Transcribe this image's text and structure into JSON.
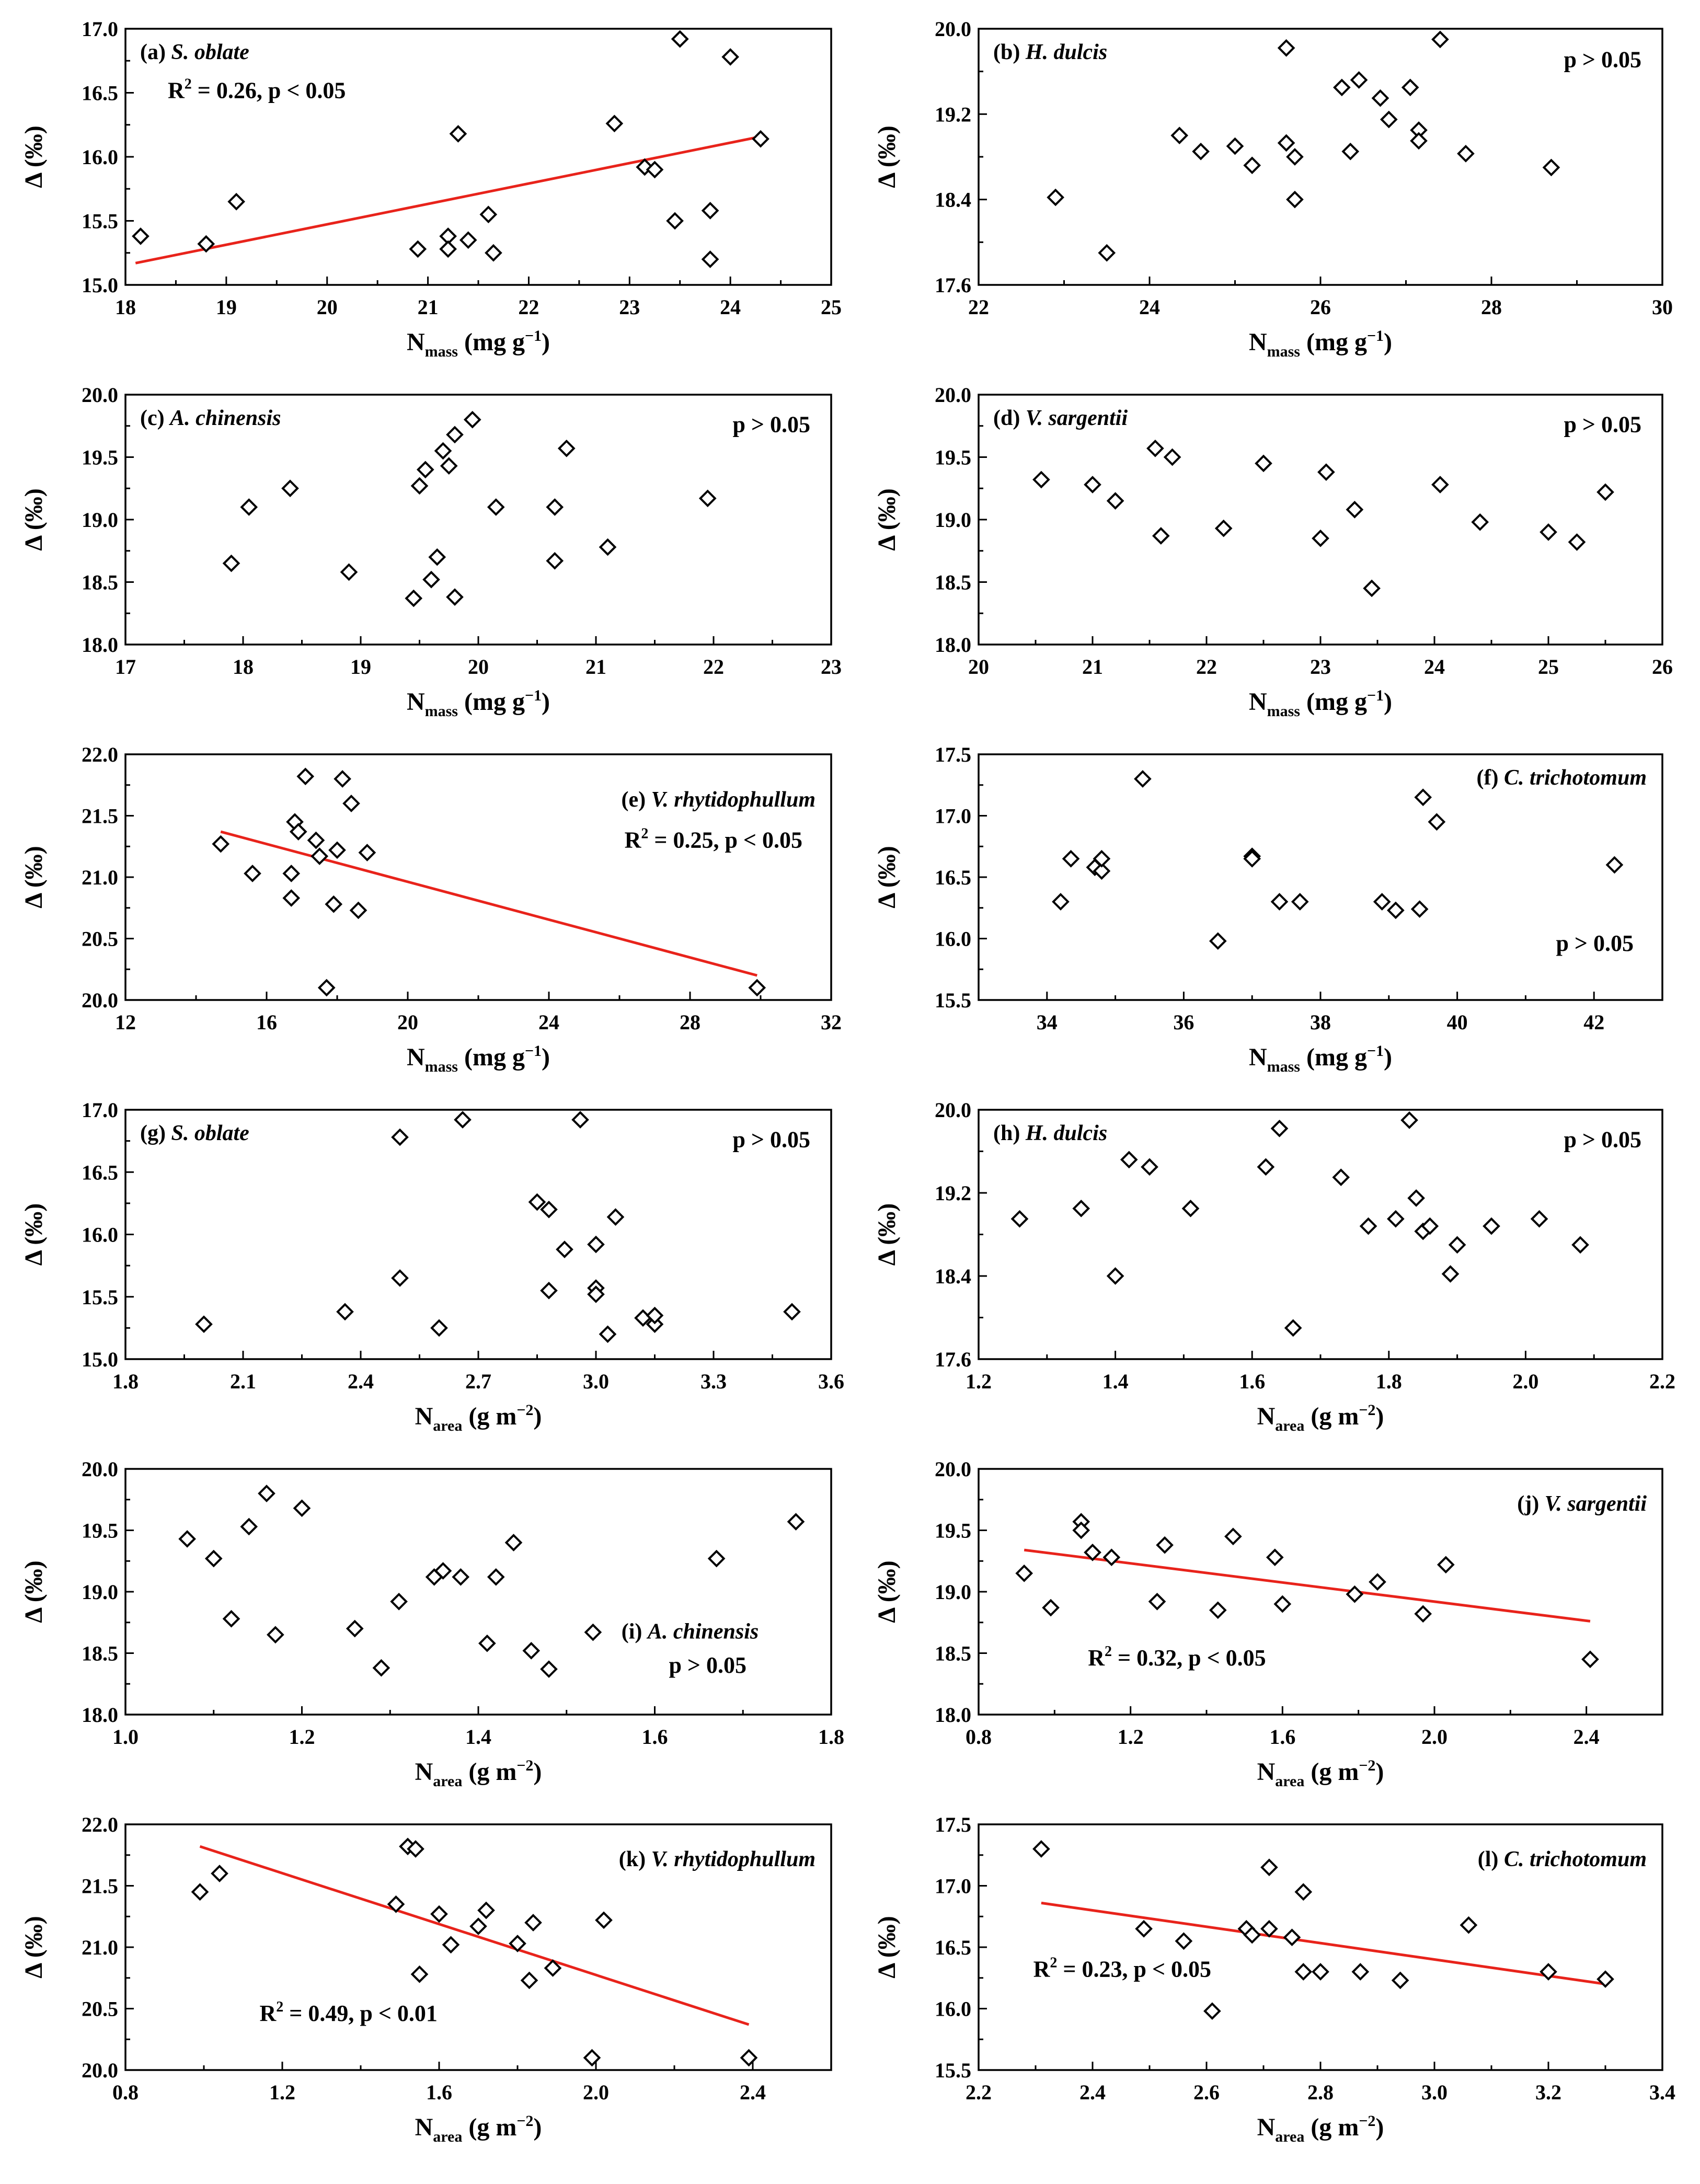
{
  "colors": {
    "fit_line": "#e8231b",
    "marker_stroke": "#000000",
    "background": "#ffffff"
  },
  "chart_data": [
    {
      "type": "scatter",
      "panel": "(a)",
      "species": "S. oblate",
      "xlabel": "N",
      "xlabel_sub": "mass",
      "xlabel_unit": " (mg g",
      "xlabel_sup": "−1",
      "xlabel_close": ")",
      "ylabel": "Δ (‰)",
      "xlim": [
        18,
        25
      ],
      "ylim": [
        15.0,
        17.0
      ],
      "xticks": [
        18,
        19,
        20,
        21,
        22,
        23,
        24,
        25
      ],
      "xtick_labels": [
        "18",
        "19",
        "20",
        "21",
        "22",
        "23",
        "24",
        "25"
      ],
      "yticks": [
        15.0,
        15.5,
        16.0,
        16.5,
        17.0
      ],
      "ytick_labels": [
        "15.0",
        "15.5",
        "16.0",
        "16.5",
        "17.0"
      ],
      "x": [
        18.15,
        18.8,
        19.1,
        20.9,
        21.2,
        21.2,
        21.3,
        21.4,
        21.6,
        21.65,
        22.85,
        23.15,
        23.25,
        23.45,
        23.5,
        23.5,
        23.8,
        23.8,
        24.0,
        24.3
      ],
      "y": [
        15.38,
        15.32,
        15.65,
        15.28,
        15.38,
        15.28,
        16.18,
        15.35,
        15.55,
        15.25,
        16.26,
        15.92,
        15.9,
        15.5,
        16.92,
        16.92,
        15.58,
        15.2,
        16.78,
        16.14
      ],
      "fit": {
        "x": [
          18.1,
          24.25
        ],
        "y": [
          15.17,
          16.15
        ]
      },
      "annotation": {
        "r2_prefix": "R",
        "r2_sup": "2",
        "text": " = 0.26, p < 0.05",
        "position": "top-left"
      }
    },
    {
      "type": "scatter",
      "panel": "(b)",
      "species": "H. dulcis",
      "xlabel": "N",
      "xlabel_sub": "mass",
      "xlabel_unit": " (mg g",
      "xlabel_sup": "−1",
      "xlabel_close": ")",
      "ylabel": "Δ (‰)",
      "xlim": [
        22,
        30
      ],
      "ylim": [
        17.6,
        20.0
      ],
      "xticks": [
        22,
        24,
        26,
        28,
        30
      ],
      "xtick_labels": [
        "22",
        "24",
        "26",
        "28",
        "30"
      ],
      "yticks": [
        17.6,
        18.4,
        19.2,
        20.0
      ],
      "ytick_labels": [
        "17.6",
        "18.4",
        "19.2",
        "20.0"
      ],
      "x": [
        22.9,
        23.5,
        24.35,
        24.6,
        25.0,
        25.2,
        25.6,
        25.6,
        25.7,
        25.7,
        26.25,
        26.35,
        26.45,
        26.7,
        26.8,
        27.05,
        27.15,
        27.15,
        27.4,
        27.7,
        28.7
      ],
      "y": [
        18.42,
        17.9,
        19.0,
        18.85,
        18.9,
        18.72,
        19.82,
        18.93,
        18.8,
        18.4,
        19.45,
        18.85,
        19.52,
        19.35,
        19.15,
        19.45,
        19.05,
        18.95,
        19.9,
        18.83,
        18.7
      ],
      "fit": null,
      "annotation": {
        "text": "p > 0.05",
        "position": "top-right"
      }
    },
    {
      "type": "scatter",
      "panel": "(c)",
      "species": "A. chinensis",
      "xlabel": "N",
      "xlabel_sub": "mass",
      "xlabel_unit": " (mg g",
      "xlabel_sup": "−1",
      "xlabel_close": ")",
      "ylabel": "Δ (‰)",
      "xlim": [
        17,
        23
      ],
      "ylim": [
        18.0,
        20.0
      ],
      "xticks": [
        17,
        18,
        19,
        20,
        21,
        22,
        23
      ],
      "xtick_labels": [
        "17",
        "18",
        "19",
        "20",
        "21",
        "22",
        "23"
      ],
      "yticks": [
        18.0,
        18.5,
        19.0,
        19.5,
        20.0
      ],
      "ytick_labels": [
        "18.0",
        "18.5",
        "19.0",
        "19.5",
        "20.0"
      ],
      "x": [
        17.9,
        18.05,
        18.4,
        18.9,
        19.45,
        19.5,
        19.55,
        19.6,
        19.65,
        19.7,
        19.75,
        19.8,
        19.8,
        19.95,
        20.15,
        20.65,
        20.65,
        20.75,
        21.1,
        21.95
      ],
      "y": [
        18.65,
        19.1,
        19.25,
        18.58,
        18.37,
        19.27,
        19.4,
        18.52,
        18.7,
        19.55,
        19.43,
        19.68,
        18.38,
        19.8,
        19.1,
        19.1,
        18.67,
        19.57,
        18.78,
        19.17
      ],
      "fit": null,
      "annotation": {
        "text": "p > 0.05",
        "position": "top-right"
      }
    },
    {
      "type": "scatter",
      "panel": "(d)",
      "species": "V. sargentii",
      "xlabel": "N",
      "xlabel_sub": "mass",
      "xlabel_unit": " (mg g",
      "xlabel_sup": "−1",
      "xlabel_close": ")",
      "ylabel": "Δ (‰)",
      "xlim": [
        20,
        26
      ],
      "ylim": [
        18.0,
        20.0
      ],
      "xticks": [
        20,
        21,
        22,
        23,
        24,
        25,
        26
      ],
      "xtick_labels": [
        "20",
        "21",
        "22",
        "23",
        "24",
        "25",
        "26"
      ],
      "yticks": [
        18.0,
        18.5,
        19.0,
        19.5,
        20.0
      ],
      "ytick_labels": [
        "18.0",
        "18.5",
        "19.0",
        "19.5",
        "20.0"
      ],
      "x": [
        20.55,
        21.0,
        21.2,
        21.55,
        21.6,
        21.7,
        22.15,
        22.5,
        23.0,
        23.05,
        23.3,
        23.45,
        24.05,
        24.4,
        25.0,
        25.25,
        25.5
      ],
      "y": [
        19.32,
        19.28,
        19.15,
        19.57,
        18.87,
        19.5,
        18.93,
        19.45,
        18.85,
        19.38,
        19.08,
        18.45,
        19.28,
        18.98,
        18.9,
        18.82,
        19.22
      ],
      "fit": null,
      "annotation": {
        "text": "p > 0.05",
        "position": "top-right"
      }
    },
    {
      "type": "scatter",
      "panel": "(e)",
      "species": "V. rhytidophullum",
      "xlabel": "N",
      "xlabel_sub": "mass",
      "xlabel_unit": " (mg g",
      "xlabel_sup": "−1",
      "xlabel_close": ")",
      "ylabel": "Δ (‰)",
      "xlim": [
        12,
        32
      ],
      "ylim": [
        20.0,
        22.0
      ],
      "xticks": [
        12,
        16,
        20,
        24,
        28,
        32
      ],
      "xtick_labels": [
        "12",
        "16",
        "20",
        "24",
        "28",
        "32"
      ],
      "yticks": [
        20.0,
        20.5,
        21.0,
        21.5,
        22.0
      ],
      "ytick_labels": [
        "20.0",
        "20.5",
        "21.0",
        "21.5",
        "22.0"
      ],
      "x": [
        14.7,
        15.6,
        16.7,
        16.7,
        16.8,
        16.9,
        17.1,
        17.4,
        17.5,
        17.7,
        17.9,
        18.0,
        18.15,
        18.4,
        18.6,
        18.85,
        29.9
      ],
      "y": [
        21.27,
        21.03,
        21.03,
        20.83,
        21.45,
        21.37,
        21.82,
        21.3,
        21.17,
        20.1,
        20.78,
        21.22,
        21.8,
        21.6,
        20.73,
        21.2,
        20.1
      ],
      "fit": {
        "x": [
          14.7,
          29.9
        ],
        "y": [
          21.37,
          20.2
        ]
      },
      "annotation": {
        "r2_prefix": "R",
        "r2_sup": "2",
        "text": " = 0.25, p < 0.05",
        "position": "top-right"
      }
    },
    {
      "type": "scatter",
      "panel": "(f)",
      "species": "C. trichotomum",
      "xlabel": "N",
      "xlabel_sub": "mass",
      "xlabel_unit": " (mg g",
      "xlabel_sup": "−1",
      "xlabel_close": ")",
      "ylabel": "Δ (‰)",
      "xlim": [
        33,
        43
      ],
      "ylim": [
        15.5,
        17.5
      ],
      "xticks": [
        34,
        36,
        38,
        40,
        42
      ],
      "xtick_labels": [
        "34",
        "36",
        "38",
        "40",
        "42"
      ],
      "yticks": [
        15.5,
        16.0,
        16.5,
        17.0,
        17.5
      ],
      "ytick_labels": [
        "15.5",
        "16.0",
        "16.5",
        "17.0",
        "17.5"
      ],
      "x": [
        34.2,
        34.35,
        34.7,
        34.8,
        34.8,
        35.4,
        36.5,
        37.0,
        37.0,
        37.4,
        37.7,
        38.9,
        39.1,
        39.45,
        39.5,
        39.7,
        42.3
      ],
      "y": [
        16.3,
        16.65,
        16.58,
        16.55,
        16.65,
        17.3,
        15.98,
        16.67,
        16.65,
        16.3,
        16.3,
        16.3,
        16.23,
        16.24,
        17.15,
        16.95,
        16.6
      ],
      "fit": null,
      "annotation": {
        "text": "p > 0.05",
        "position": "bottom-right"
      }
    },
    {
      "type": "scatter",
      "panel": "(g)",
      "species": "S. oblate",
      "xlabel": "N",
      "xlabel_sub": "area",
      "xlabel_unit": " (g m",
      "xlabel_sup": "−2",
      "xlabel_close": ")",
      "ylabel": "Δ (‰)",
      "xlim": [
        1.8,
        3.6
      ],
      "ylim": [
        15.0,
        17.0
      ],
      "xticks": [
        1.8,
        2.1,
        2.4,
        2.7,
        3.0,
        3.3,
        3.6
      ],
      "xtick_labels": [
        "1.8",
        "2.1",
        "2.4",
        "2.7",
        "3.0",
        "3.3",
        "3.6"
      ],
      "yticks": [
        15.0,
        15.5,
        16.0,
        16.5,
        17.0
      ],
      "ytick_labels": [
        "15.0",
        "15.5",
        "16.0",
        "16.5",
        "17.0"
      ],
      "x": [
        2.0,
        2.36,
        2.5,
        2.5,
        2.6,
        2.66,
        2.85,
        2.88,
        2.88,
        2.92,
        2.96,
        3.0,
        3.0,
        3.0,
        3.03,
        3.05,
        3.12,
        3.15,
        3.15,
        3.5
      ],
      "y": [
        15.28,
        15.38,
        16.78,
        15.65,
        15.25,
        16.92,
        16.26,
        16.2,
        15.55,
        15.88,
        16.92,
        15.92,
        15.57,
        15.52,
        15.2,
        16.14,
        15.33,
        15.28,
        15.35,
        15.38
      ],
      "fit": null,
      "annotation": {
        "text": "p > 0.05",
        "position": "top-right"
      }
    },
    {
      "type": "scatter",
      "panel": "(h)",
      "species": "H. dulcis",
      "xlabel": "N",
      "xlabel_sub": "area",
      "xlabel_unit": " (g m",
      "xlabel_sup": "−2",
      "xlabel_close": ")",
      "ylabel": "Δ (‰)",
      "xlim": [
        1.2,
        2.2
      ],
      "ylim": [
        17.6,
        20.0
      ],
      "xticks": [
        1.2,
        1.4,
        1.6,
        1.8,
        2.0,
        2.2
      ],
      "xtick_labels": [
        "1.2",
        "1.4",
        "1.6",
        "1.8",
        "2.0",
        "2.2"
      ],
      "yticks": [
        17.6,
        18.4,
        19.2,
        20.0
      ],
      "ytick_labels": [
        "17.6",
        "18.4",
        "19.2",
        "20.0"
      ],
      "x": [
        1.26,
        1.35,
        1.4,
        1.42,
        1.45,
        1.51,
        1.62,
        1.64,
        1.66,
        1.73,
        1.77,
        1.81,
        1.83,
        1.84,
        1.85,
        1.86,
        1.89,
        1.9,
        1.95,
        2.02,
        2.08
      ],
      "y": [
        18.95,
        19.05,
        18.4,
        19.52,
        19.45,
        19.05,
        19.45,
        19.82,
        17.9,
        19.35,
        18.88,
        18.95,
        19.9,
        19.15,
        18.83,
        18.88,
        18.42,
        18.7,
        18.88,
        18.95,
        18.7
      ],
      "fit": null,
      "annotation": {
        "text": "p > 0.05",
        "position": "top-right"
      }
    },
    {
      "type": "scatter",
      "panel": "(i)",
      "species": "A. chinensis",
      "xlabel": "N",
      "xlabel_sub": "area",
      "xlabel_unit": " (g m",
      "xlabel_sup": "−2",
      "xlabel_close": ")",
      "ylabel": "Δ (‰)",
      "xlim": [
        1.0,
        1.8
      ],
      "ylim": [
        18.0,
        20.0
      ],
      "xticks": [
        1.0,
        1.2,
        1.4,
        1.6,
        1.8
      ],
      "xtick_labels": [
        "1.0",
        "1.2",
        "1.4",
        "1.6",
        "1.8"
      ],
      "yticks": [
        18.0,
        18.5,
        19.0,
        19.5,
        20.0
      ],
      "ytick_labels": [
        "18.0",
        "18.5",
        "19.0",
        "19.5",
        "20.0"
      ],
      "x": [
        1.07,
        1.1,
        1.12,
        1.14,
        1.16,
        1.17,
        1.2,
        1.26,
        1.29,
        1.31,
        1.35,
        1.36,
        1.38,
        1.41,
        1.42,
        1.44,
        1.46,
        1.48,
        1.53,
        1.67,
        1.76
      ],
      "y": [
        19.43,
        19.27,
        18.78,
        19.53,
        19.8,
        18.65,
        19.68,
        18.7,
        18.38,
        18.92,
        19.12,
        19.17,
        19.12,
        18.58,
        19.12,
        19.4,
        18.52,
        18.37,
        18.67,
        19.27,
        19.57
      ],
      "fit": null,
      "annotation": {
        "label_text": "(i) A. chinensis",
        "text": "p > 0.05",
        "position": "bottom-right"
      }
    },
    {
      "type": "scatter",
      "panel": "(j)",
      "species": "V. sargentii",
      "xlabel": "N",
      "xlabel_sub": "area",
      "xlabel_unit": " (g m",
      "xlabel_sup": "−2",
      "xlabel_close": ")",
      "ylabel": "Δ (‰)",
      "xlim": [
        0.8,
        2.6
      ],
      "ylim": [
        18.0,
        20.0
      ],
      "xticks": [
        0.8,
        1.2,
        1.6,
        2.0,
        2.4
      ],
      "xtick_labels": [
        "0.8",
        "1.2",
        "1.6",
        "2.0",
        "2.4"
      ],
      "yticks": [
        18.0,
        18.5,
        19.0,
        19.5,
        20.0
      ],
      "ytick_labels": [
        "18.0",
        "18.5",
        "19.0",
        "19.5",
        "20.0"
      ],
      "x": [
        0.92,
        0.99,
        1.07,
        1.07,
        1.1,
        1.15,
        1.27,
        1.29,
        1.43,
        1.47,
        1.58,
        1.6,
        1.79,
        1.85,
        1.97,
        2.03,
        2.41
      ],
      "y": [
        19.15,
        18.87,
        19.57,
        19.5,
        19.32,
        19.28,
        18.92,
        19.38,
        18.85,
        19.45,
        19.28,
        18.9,
        18.98,
        19.08,
        18.82,
        19.22,
        18.45
      ],
      "fit": {
        "x": [
          0.92,
          2.41
        ],
        "y": [
          19.34,
          18.76
        ]
      },
      "annotation": {
        "r2_prefix": "R",
        "r2_sup": "2",
        "text": " = 0.32, p < 0.05",
        "position": "bottom-left"
      }
    },
    {
      "type": "scatter",
      "panel": "(k)",
      "species": "V. rhytidophullum",
      "xlabel": "N",
      "xlabel_sub": "area",
      "xlabel_unit": " (g m",
      "xlabel_sup": "−2",
      "xlabel_close": ")",
      "ylabel": "Δ (‰)",
      "xlim": [
        0.8,
        2.6
      ],
      "ylim": [
        20.0,
        22.0
      ],
      "xticks": [
        0.8,
        1.2,
        1.6,
        2.0,
        2.4
      ],
      "xtick_labels": [
        "0.8",
        "1.2",
        "1.6",
        "2.0",
        "2.4"
      ],
      "yticks": [
        20.0,
        20.5,
        21.0,
        21.5,
        22.0
      ],
      "ytick_labels": [
        "20.0",
        "20.5",
        "21.0",
        "21.5",
        "22.0"
      ],
      "x": [
        0.99,
        1.04,
        1.49,
        1.52,
        1.54,
        1.55,
        1.6,
        1.63,
        1.7,
        1.72,
        1.8,
        1.83,
        1.84,
        1.89,
        1.99,
        2.02,
        2.39
      ],
      "y": [
        21.45,
        21.6,
        21.35,
        21.82,
        21.8,
        20.78,
        21.27,
        21.02,
        21.17,
        21.3,
        21.03,
        20.73,
        21.2,
        20.83,
        20.1,
        21.22,
        20.1
      ],
      "fit": {
        "x": [
          0.99,
          2.39
        ],
        "y": [
          21.82,
          20.37
        ]
      },
      "annotation": {
        "r2_prefix": "R",
        "r2_sup": "2",
        "text": " = 0.49, p < 0.01",
        "position": "bottom-left"
      }
    },
    {
      "type": "scatter",
      "panel": "(l)",
      "species": "C. trichotomum",
      "xlabel": "N",
      "xlabel_sub": "area",
      "xlabel_unit": " (g m",
      "xlabel_sup": "−2",
      "xlabel_close": ")",
      "ylabel": "Δ (‰)",
      "xlim": [
        2.2,
        3.4
      ],
      "ylim": [
        15.5,
        17.5
      ],
      "xticks": [
        2.2,
        2.4,
        2.6,
        2.8,
        3.0,
        3.2,
        3.4
      ],
      "xtick_labels": [
        "2.2",
        "2.4",
        "2.6",
        "2.8",
        "3.0",
        "3.2",
        "3.4"
      ],
      "yticks": [
        15.5,
        16.0,
        16.5,
        17.0,
        17.5
      ],
      "ytick_labels": [
        "15.5",
        "16.0",
        "16.5",
        "17.0",
        "17.5"
      ],
      "x": [
        2.31,
        2.49,
        2.56,
        2.61,
        2.67,
        2.68,
        2.71,
        2.71,
        2.75,
        2.77,
        2.77,
        2.8,
        2.87,
        2.94,
        3.06,
        3.2,
        3.3
      ],
      "y": [
        17.3,
        16.65,
        16.55,
        15.98,
        16.65,
        16.6,
        16.65,
        17.15,
        16.58,
        16.95,
        16.3,
        16.3,
        16.3,
        16.23,
        16.68,
        16.3,
        16.24
      ],
      "fit": {
        "x": [
          2.31,
          3.3
        ],
        "y": [
          16.86,
          16.2
        ]
      },
      "annotation": {
        "r2_prefix": "R",
        "r2_sup": "2",
        "text": " = 0.23, p < 0.05",
        "position": "bottom-left"
      }
    }
  ]
}
